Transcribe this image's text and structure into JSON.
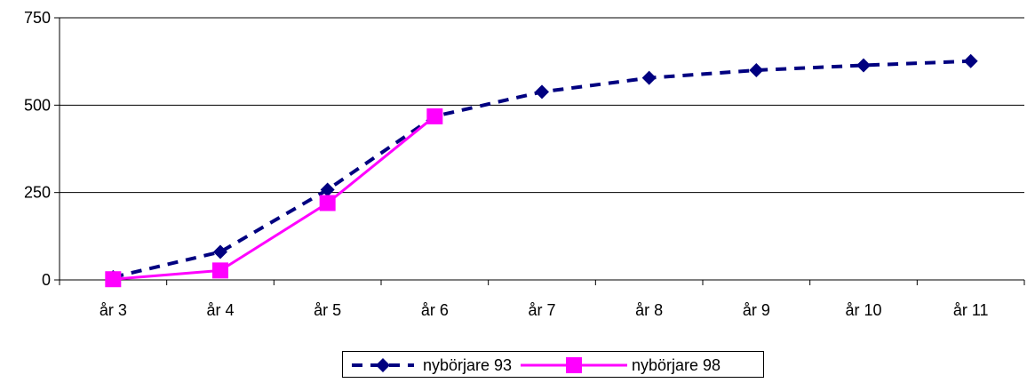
{
  "chart_data": {
    "type": "line",
    "title": "",
    "xlabel": "",
    "ylabel": "",
    "categories": [
      "år 3",
      "år 4",
      "år 5",
      "år 6",
      "år 7",
      "år 8",
      "år 9",
      "år 10",
      "år 11"
    ],
    "ylim": [
      0,
      750
    ],
    "yticks": [
      0,
      250,
      500,
      750
    ],
    "grid": "horizontal",
    "legend": "bottom",
    "series": [
      {
        "name": "nybörjare 93",
        "color": "#000080",
        "line_style": "dashed",
        "marker": "diamond",
        "values": [
          8,
          80,
          258,
          468,
          538,
          578,
          600,
          614,
          626
        ]
      },
      {
        "name": "nybörjare 98",
        "color": "#FF00FF",
        "line_style": "solid",
        "marker": "square",
        "values": [
          2,
          27,
          220,
          468,
          null,
          null,
          null,
          null,
          null
        ]
      }
    ]
  }
}
